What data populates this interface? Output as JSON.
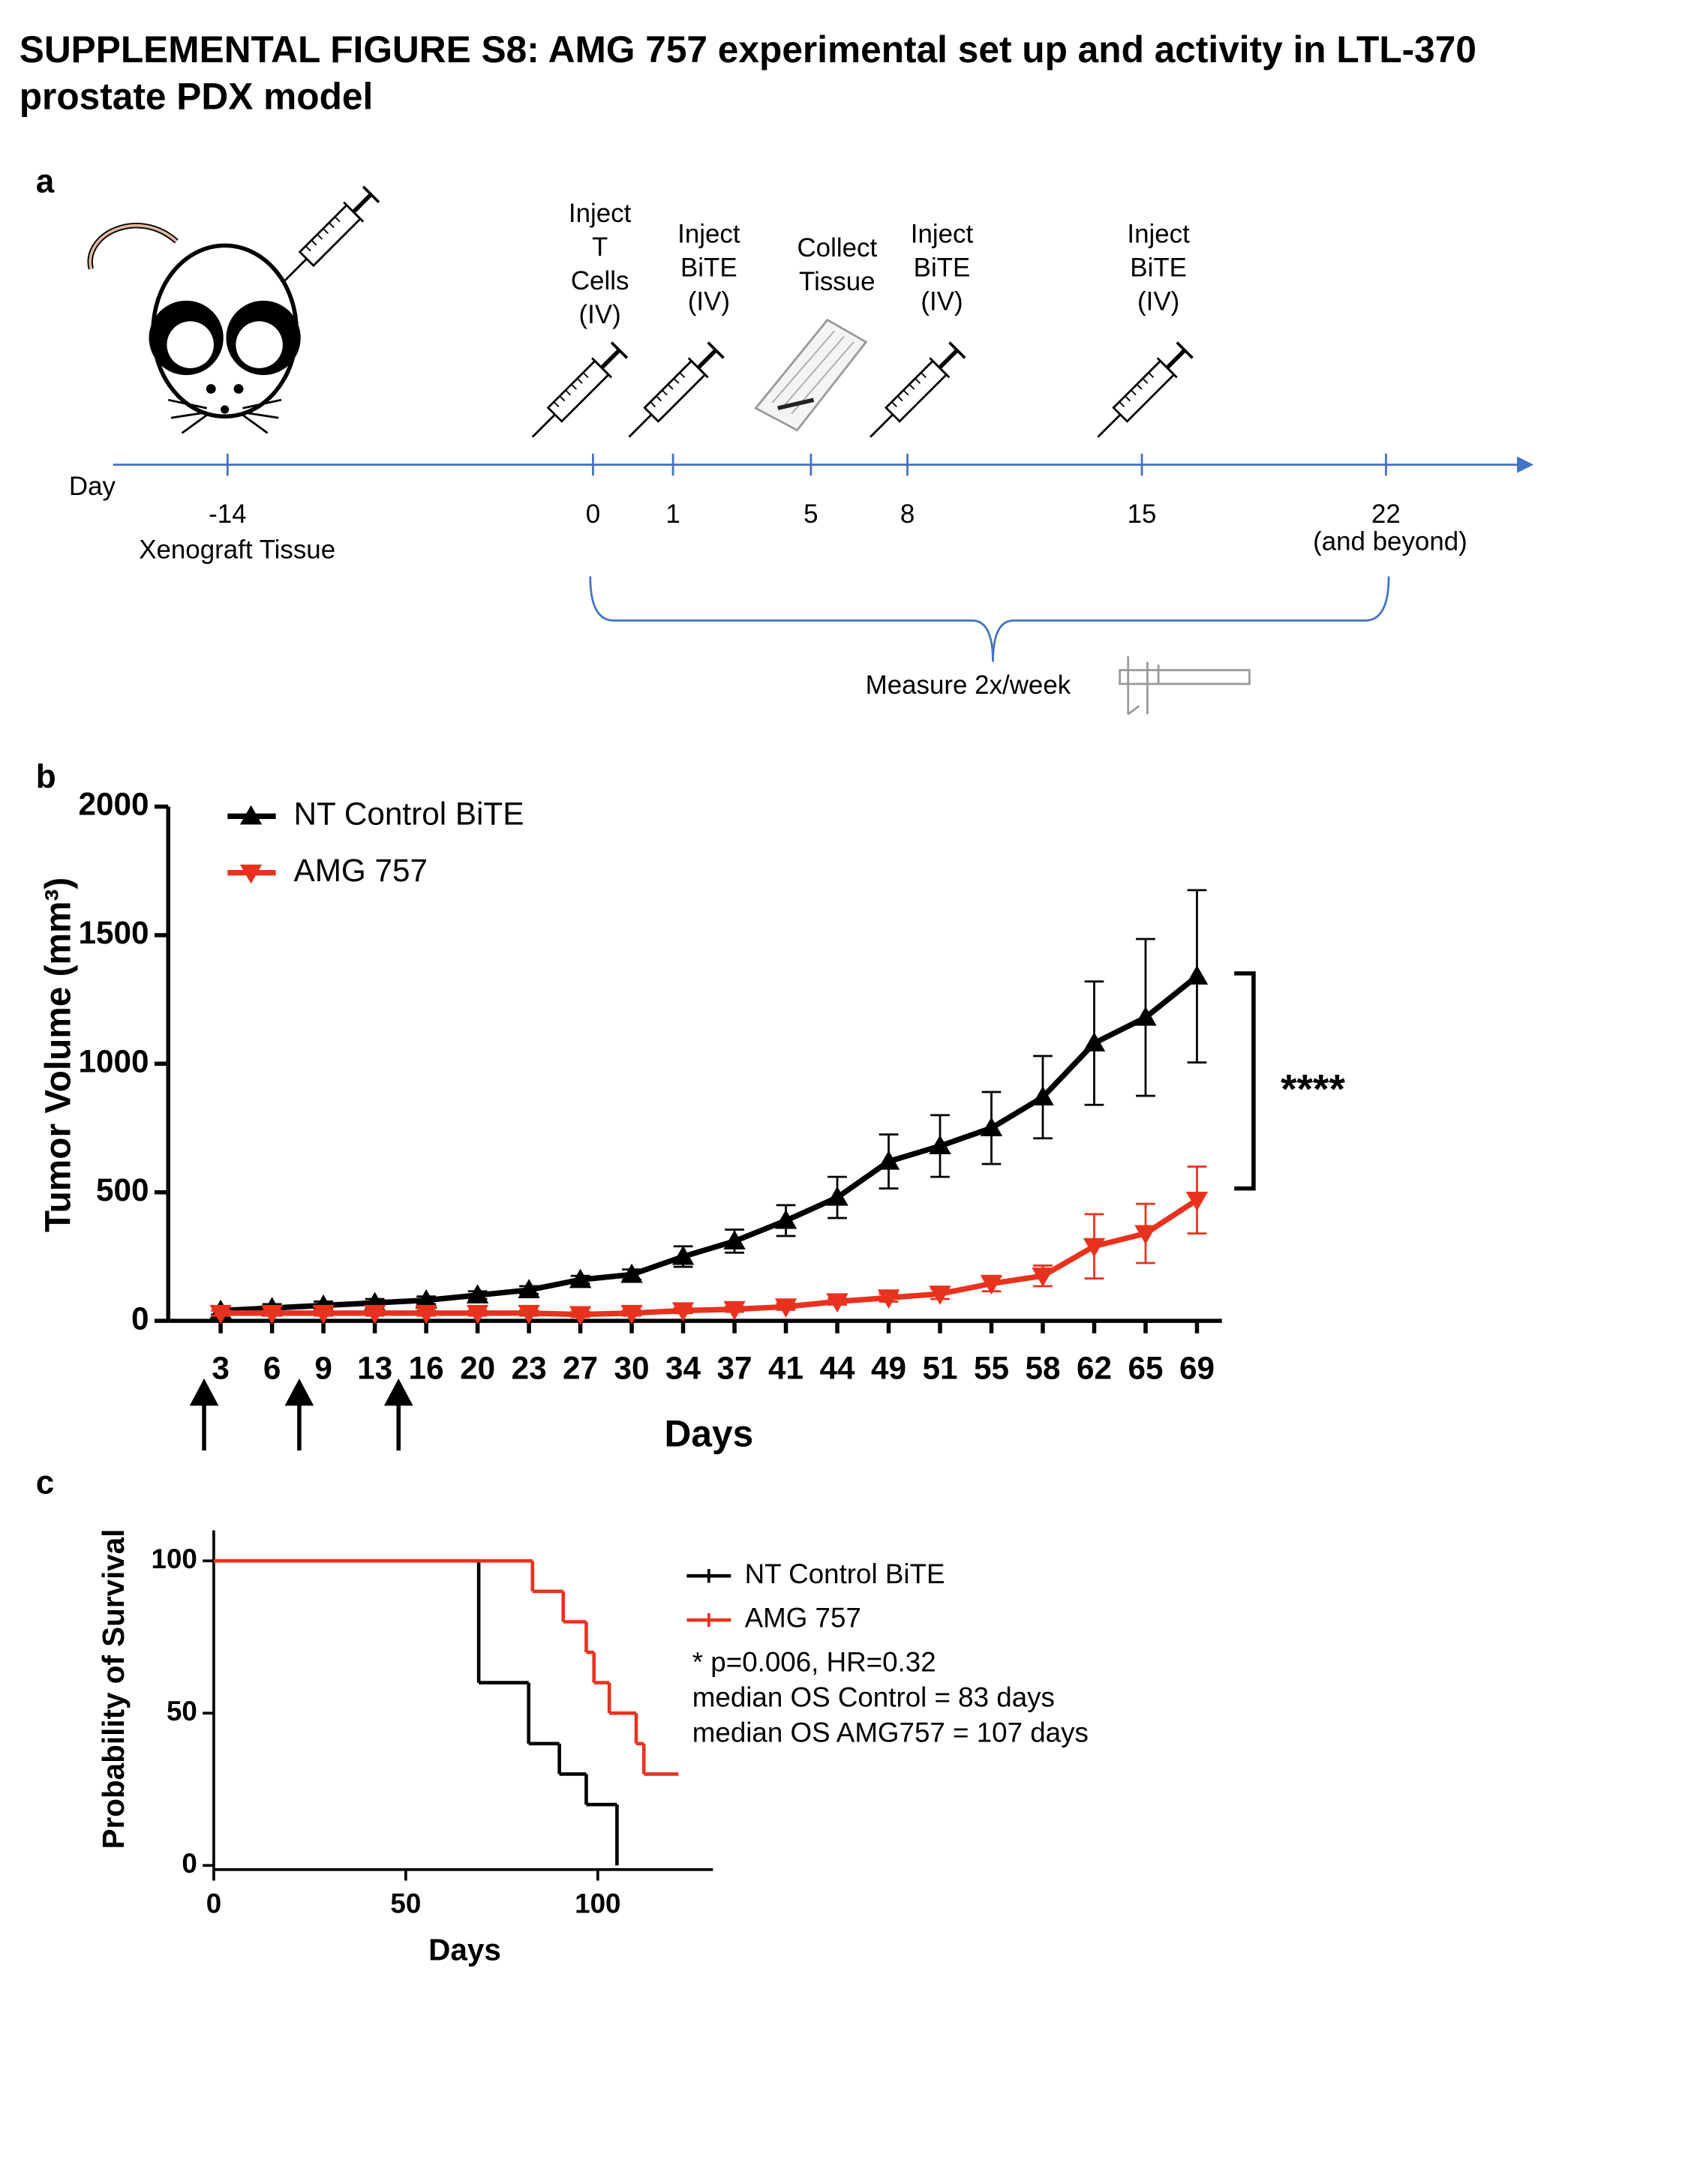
{
  "header": {
    "title_lines": [
      "SUPPLEMENTAL FIGURE S8: AMG 757 experimental set up and activity in LTL-370",
      "prostate PDX model"
    ]
  },
  "panel_a": {
    "label": "a",
    "axis_label": "Day",
    "timepoints": [
      {
        "day": -14,
        "note": "Xenograft Tissue"
      },
      {
        "day": 0
      },
      {
        "day": 1
      },
      {
        "day": 5
      },
      {
        "day": 8
      },
      {
        "day": 15
      },
      {
        "day": 22,
        "note": "(and beyond)"
      }
    ],
    "events": [
      {
        "lines": [
          "Inject",
          "T",
          "Cells",
          "(IV)"
        ]
      },
      {
        "lines": [
          "Inject",
          "BiTE",
          "(IV)"
        ]
      },
      {
        "lines": [
          "Collect",
          "Tissue"
        ]
      },
      {
        "lines": [
          "Inject",
          "BiTE",
          "(IV)"
        ]
      },
      {
        "lines": [
          "Inject",
          "BiTE",
          "(IV)"
        ]
      }
    ],
    "measure": "Measure 2x/week"
  },
  "chart_data": [
    {
      "type": "line",
      "panel_label": "b",
      "y_label": "Tumor Volume (mm³)",
      "x_label": "Days",
      "categories": [
        3,
        6,
        9,
        13,
        16,
        20,
        23,
        27,
        30,
        34,
        37,
        41,
        44,
        49,
        51,
        55,
        58,
        62,
        65,
        69
      ],
      "series": [
        {
          "name": "NT Control BiTE",
          "color": "#000000",
          "marker": "triangle-up",
          "values": [
            40,
            50,
            60,
            70,
            80,
            100,
            120,
            160,
            180,
            250,
            310,
            390,
            480,
            620,
            680,
            750,
            870,
            1080,
            1180,
            1340
          ],
          "errors": [
            15,
            15,
            15,
            15,
            15,
            15,
            15,
            15,
            20,
            40,
            45,
            60,
            80,
            105,
            120,
            140,
            160,
            240,
            305,
            335
          ]
        },
        {
          "name": "AMG 757",
          "color": "#e8321e",
          "marker": "triangle-down",
          "values": [
            30,
            30,
            30,
            30,
            30,
            30,
            30,
            25,
            30,
            40,
            45,
            55,
            75,
            90,
            105,
            145,
            175,
            290,
            340,
            470
          ],
          "errors": [
            10,
            10,
            10,
            10,
            10,
            10,
            10,
            10,
            10,
            10,
            10,
            12,
            12,
            15,
            20,
            30,
            40,
            125,
            115,
            130
          ]
        }
      ],
      "ylim": [
        0,
        2000
      ],
      "yticks": [
        0,
        500,
        1000,
        1500,
        2000
      ],
      "legend": "top-left",
      "annotation": "****"
    },
    {
      "type": "step",
      "panel_label": "c",
      "y_label": "Probability of Survival",
      "x_label": "Days",
      "series": [
        {
          "name": "NT Control BiTE",
          "color": "#000000",
          "x": [
            0,
            69,
            82,
            90,
            97,
            105
          ],
          "values": [
            100,
            60,
            40,
            30,
            20,
            0
          ]
        },
        {
          "name": "AMG 757",
          "color": "#e8321e",
          "x": [
            0,
            83,
            91,
            97,
            99,
            103,
            110,
            112,
            121
          ],
          "values": [
            100,
            90,
            80,
            70,
            60,
            50,
            40,
            30,
            30
          ]
        }
      ],
      "xlim": [
        0,
        130
      ],
      "xticks": [
        0,
        50,
        100
      ],
      "ylim": [
        0,
        110
      ],
      "yticks": [
        0,
        50,
        100
      ],
      "legend": "right",
      "annotations": [
        "* p=0.006, HR=0.32",
        "median OS Control = 83 days",
        "median OS AMG757 = 107 days"
      ]
    }
  ]
}
